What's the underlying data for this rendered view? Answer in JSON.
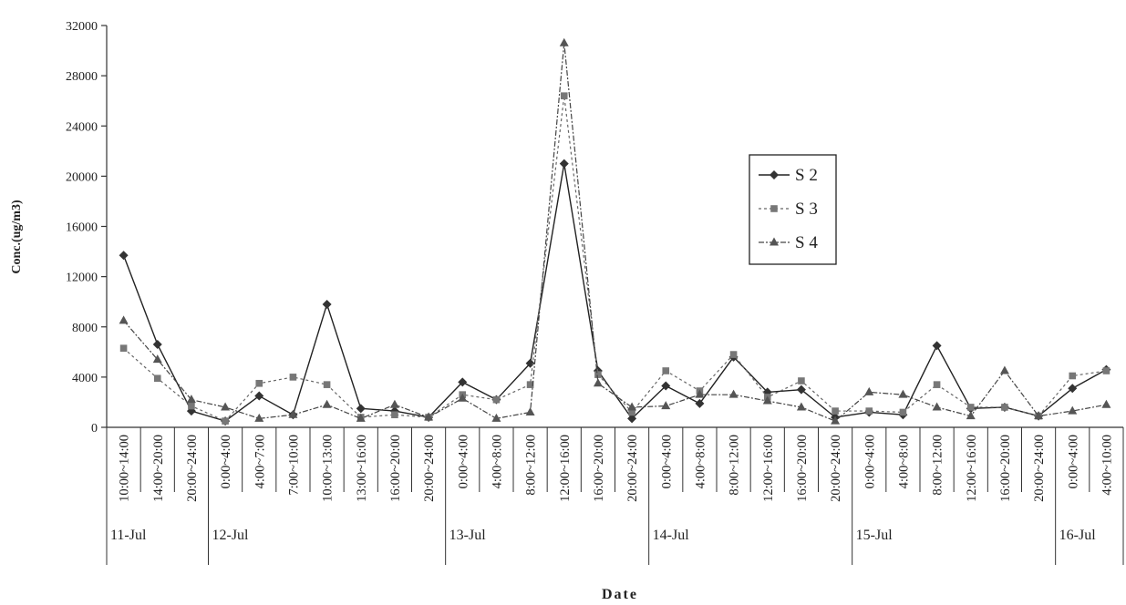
{
  "chart_data": {
    "type": "line",
    "title": "",
    "xlabel": "Date",
    "ylabel": "Conc.(ug/m3)",
    "ylim": [
      0,
      32000
    ],
    "yticks": [
      0,
      4000,
      8000,
      12000,
      16000,
      20000,
      24000,
      28000,
      32000
    ],
    "grid": false,
    "legend_position": "right",
    "categories": [
      "10:00~14:00",
      "14:00~20:00",
      "20:00~24:00",
      "0:00~4:00",
      "4:00~7:00",
      "7:00~10:00",
      "10:00~13:00",
      "13:00~16:00",
      "16:00~20:00",
      "20:00~24:00",
      "0:00~4:00",
      "4:00~8:00",
      "8:00~12:00",
      "12:00~16:00",
      "16:00~20:00",
      "20:00~24:00",
      "0:00~4:00",
      "4:00~8:00",
      "8:00~12:00",
      "12:00~16:00",
      "16:00~20:00",
      "20:00~24:00",
      "0:00~4:00",
      "4:00~8:00",
      "8:00~12:00",
      "12:00~16:00",
      "16:00~20:00",
      "20:00~24:00",
      "0:00~4:00",
      "4:00~10:00"
    ],
    "day_groups": [
      {
        "label": "11-Jul",
        "start": 0,
        "count": 3
      },
      {
        "label": "12-Jul",
        "start": 3,
        "count": 7
      },
      {
        "label": "13-Jul",
        "start": 10,
        "count": 6
      },
      {
        "label": "14-Jul",
        "start": 16,
        "count": 6
      },
      {
        "label": "15-Jul",
        "start": 22,
        "count": 6
      },
      {
        "label": "16-Jul",
        "start": 28,
        "count": 2
      }
    ],
    "series": [
      {
        "name": "S2",
        "marker": "diamond",
        "dash": "solid",
        "values": [
          13700,
          6600,
          1300,
          500,
          2500,
          1000,
          9800,
          1500,
          1300,
          800,
          3600,
          2200,
          5100,
          21000,
          4500,
          700,
          3300,
          1900,
          5600,
          2800,
          3000,
          800,
          1200,
          1000,
          6500,
          1500,
          1600,
          900,
          3100,
          4600
        ]
      },
      {
        "name": "S3",
        "marker": "square",
        "dash": "dashed",
        "values": [
          6300,
          3900,
          1700,
          500,
          3500,
          4000,
          3400,
          800,
          1000,
          800,
          2600,
          2200,
          3400,
          26400,
          4200,
          1200,
          4500,
          2900,
          5800,
          2400,
          3700,
          1300,
          1300,
          1200,
          3400,
          1600,
          1600,
          900,
          4100,
          4500
        ]
      },
      {
        "name": "S4",
        "marker": "triangle",
        "dash": "dashdot",
        "values": [
          8500,
          5400,
          2200,
          1600,
          700,
          1000,
          1800,
          700,
          1800,
          800,
          2300,
          700,
          1200,
          30600,
          3500,
          1600,
          1700,
          2600,
          2600,
          2100,
          1600,
          500,
          2800,
          2600,
          1600,
          900,
          4500,
          900,
          1300,
          1800
        ]
      }
    ]
  }
}
